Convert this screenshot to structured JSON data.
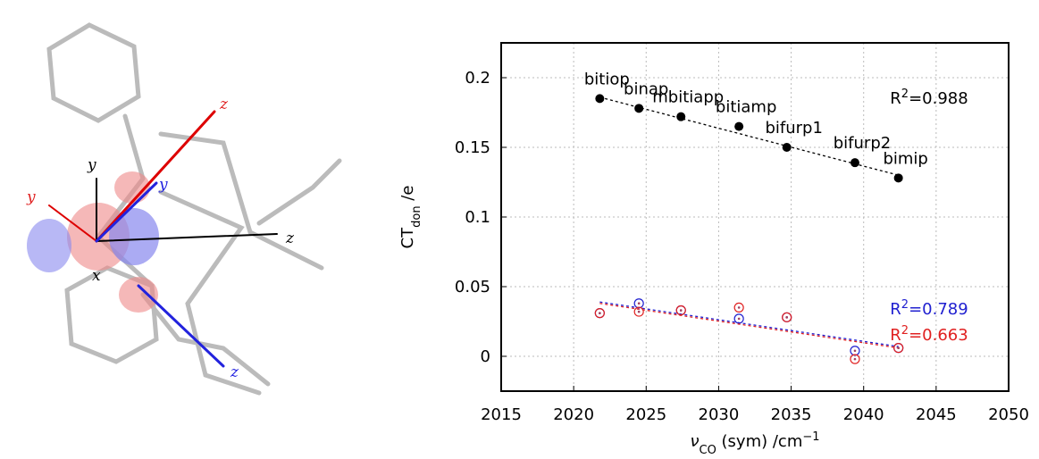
{
  "molecule": {
    "axis_labels": [
      {
        "text": "y",
        "color": "#000000"
      },
      {
        "text": "y",
        "color": "#e02020"
      },
      {
        "text": "z",
        "color": "#e02020"
      },
      {
        "text": "y",
        "color": "#2020e0"
      },
      {
        "text": "x",
        "color": "#000000"
      },
      {
        "text": "z",
        "color": "#000000"
      },
      {
        "text": "z",
        "color": "#2020e0"
      }
    ]
  },
  "chart_data": {
    "type": "scatter",
    "xlabel": [
      {
        "text": "ν"
      },
      {
        "text": "CO",
        "sub": true
      },
      {
        "text": " (sym) /cm"
      },
      {
        "text": "−1",
        "sup": true
      }
    ],
    "ylabel": [
      {
        "text": "CT"
      },
      {
        "text": "don",
        "sub": true
      },
      {
        "text": " /e"
      }
    ],
    "xlim": [
      2015,
      2050
    ],
    "xticks": [
      2015,
      2020,
      2025,
      2030,
      2035,
      2040,
      2045,
      2050
    ],
    "ylim": [
      -0.025,
      0.225
    ],
    "yticks": [
      0,
      0.05,
      0.1,
      0.15,
      0.2
    ],
    "grid": true,
    "x": [
      2021.8,
      2024.5,
      2027.4,
      2031.4,
      2034.7,
      2039.4,
      2042.4
    ],
    "point_labels": [
      "bitiop",
      "binap",
      "mbitiapp",
      "bitiamp",
      "bifurp1",
      "bifurp2",
      "bimip"
    ],
    "series": [
      {
        "color": "#000000",
        "marker": "filled",
        "values": [
          0.185,
          0.178,
          0.172,
          0.165,
          0.15,
          0.139,
          0.128
        ],
        "fit_x": [
          2021.8,
          2042.4
        ],
        "fit_values": [
          0.186,
          0.13
        ],
        "r2_label": {
          "base": "R",
          "sup": "2",
          "rest": "=0.988"
        }
      },
      {
        "color": "#2020d0",
        "marker": "open",
        "values": [
          0.031,
          0.038,
          0.033,
          0.027,
          0.028,
          0.004,
          0.006
        ],
        "fit_x": [
          2021.8,
          2042.4
        ],
        "fit_values": [
          0.039,
          0.007
        ],
        "r2_label": {
          "base": "R",
          "sup": "2",
          "rest": "=0.789"
        }
      },
      {
        "color": "#e02020",
        "marker": "open",
        "values": [
          0.031,
          0.032,
          0.033,
          0.035,
          0.028,
          -0.002,
          0.006
        ],
        "fit_x": [
          2021.8,
          2042.4
        ],
        "fit_values": [
          0.038,
          0.006
        ],
        "r2_label": {
          "base": "R",
          "sup": "2",
          "rest": "=0.663"
        }
      }
    ]
  }
}
